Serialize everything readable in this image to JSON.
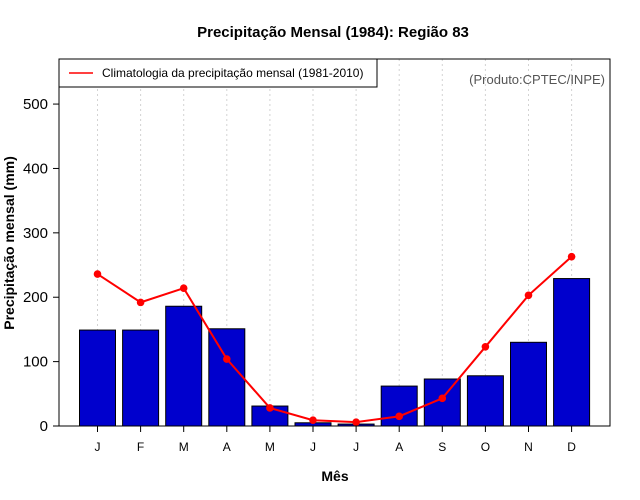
{
  "chart_data": {
    "type": "bar",
    "title": "Precipitação Mensal (1984): Região 83",
    "xlabel": "Mês",
    "ylabel": "Precipitação mensal (mm)",
    "ylim": [
      0,
      570
    ],
    "yticks": [
      0,
      100,
      200,
      300,
      400,
      500
    ],
    "categories": [
      "J",
      "F",
      "M",
      "A",
      "M",
      "J",
      "J",
      "A",
      "S",
      "O",
      "N",
      "D"
    ],
    "series": [
      {
        "name": "Precipitação mensal (1984)",
        "kind": "bar",
        "color": "#0000cd",
        "values": [
          149,
          149,
          186,
          151,
          31,
          5,
          3,
          62,
          73,
          78,
          130,
          229
        ]
      },
      {
        "name": "Climatologia da precipitação mensal (1981-2010)",
        "kind": "line",
        "color": "#ff0000",
        "values": [
          236,
          192,
          214,
          104,
          28,
          9,
          6,
          15,
          43,
          123,
          203,
          263
        ]
      }
    ],
    "legend": {
      "position": "top-left",
      "label": "Climatologia da precipitação mensal (1981-2010)"
    },
    "annotation": "(Produto:CPTEC/INPE)",
    "grid": "vertical dotted"
  }
}
